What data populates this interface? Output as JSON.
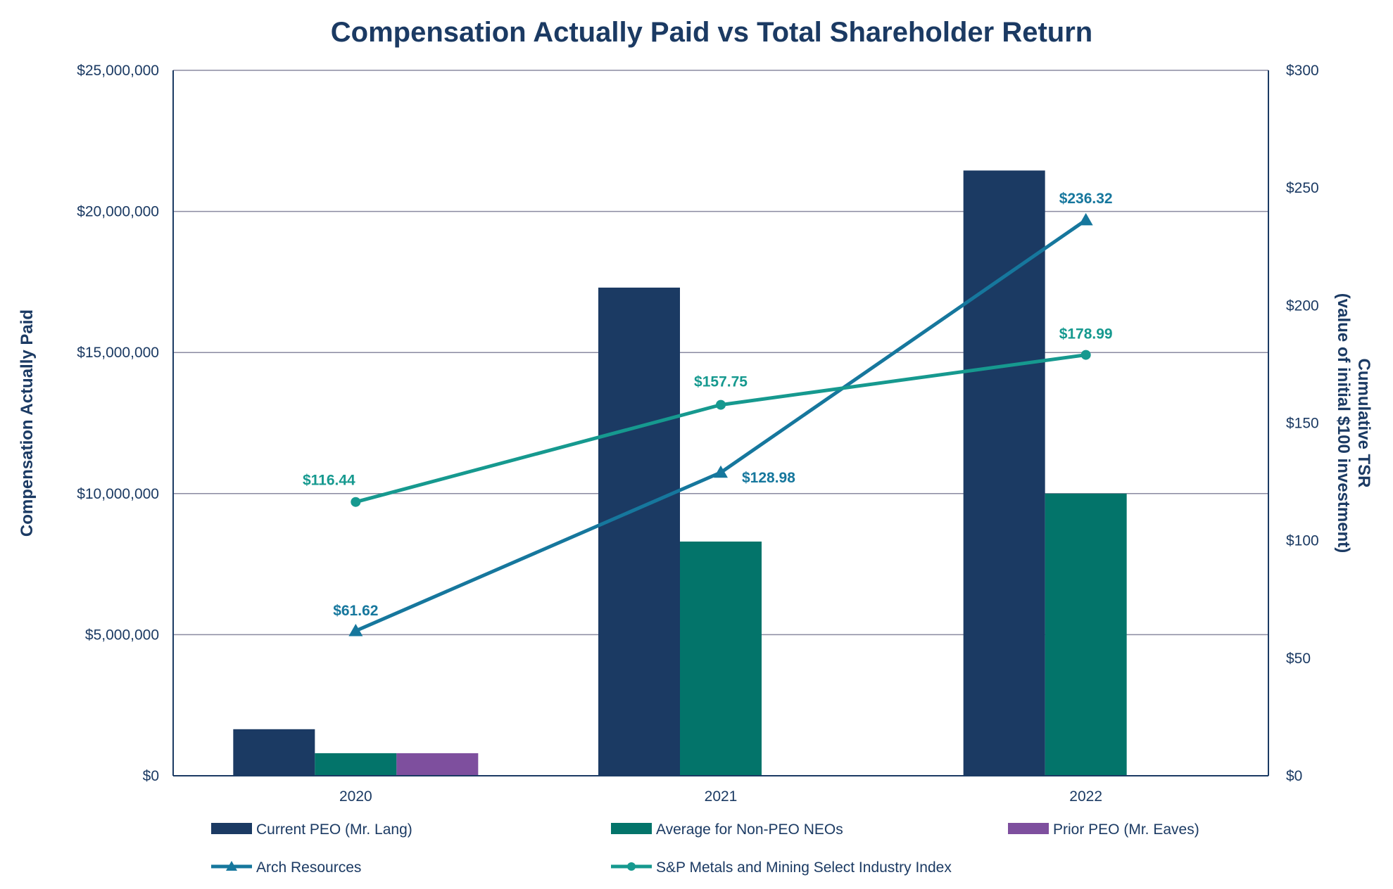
{
  "chart_data": {
    "type": "bar",
    "title": "Compensation Actually Paid vs Total Shareholder Return",
    "categories": [
      "2020",
      "2021",
      "2022"
    ],
    "ylabel": "Compensation Actually Paid",
    "y2label_line1": "Cumulative TSR",
    "y2label_line2": "(value of initial $100 investment)",
    "ylim": [
      0,
      25000000
    ],
    "y2lim": [
      0,
      300
    ],
    "yticks": [
      "$0",
      "$5,000,000",
      "$10,000,000",
      "$15,000,000",
      "$20,000,000",
      "$25,000,000"
    ],
    "y2ticks": [
      "$0",
      "$50",
      "$100",
      "$150",
      "$200",
      "$250",
      "$300"
    ],
    "grid": true,
    "legend_position": "bottom",
    "bar_series": [
      {
        "name": "Current PEO (Mr. Lang)",
        "color": "#1b3a63",
        "values": [
          1650000,
          17300000,
          21450000
        ]
      },
      {
        "name": "Average for Non-PEO NEOs",
        "color": "#03746a",
        "values": [
          800000,
          8300000,
          10000000
        ]
      },
      {
        "name": "Prior PEO (Mr. Eaves)",
        "color": "#7e4f9e",
        "values": [
          800000,
          null,
          null
        ]
      }
    ],
    "line_series": [
      {
        "name": "Arch Resources",
        "color": "#16779d",
        "marker": "triangle",
        "values": [
          61.62,
          128.98,
          236.32
        ],
        "labels": [
          "$61.62",
          "$128.98",
          "$236.32"
        ]
      },
      {
        "name": "S&P Metals and Mining Select Industry Index",
        "color": "#16998f",
        "marker": "circle",
        "values": [
          116.44,
          157.75,
          178.99
        ],
        "labels": [
          "$116.44",
          "$157.75",
          "$178.99"
        ]
      }
    ],
    "colors": {
      "title": "#1b3a63",
      "axis_text": "#1b3a63",
      "grid": "#8a8aa0"
    }
  }
}
